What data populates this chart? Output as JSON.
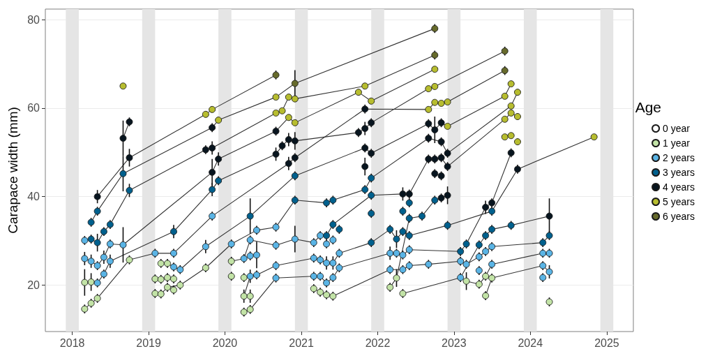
{
  "chart_data": {
    "type": "scatter",
    "ylabel": "Carapace width (mm)",
    "legend_title": "Age",
    "legend": "right",
    "grid": "y",
    "line_style": "solid",
    "xlim": [
      "2017-08-25",
      "2025-05-08"
    ],
    "xticks": [
      "2018",
      "2019",
      "2020",
      "2021",
      "2022",
      "2023",
      "2024",
      "2025"
    ],
    "ylim": [
      9.5,
      82.4
    ],
    "yticks": [
      20,
      40,
      60,
      80
    ],
    "bands": [
      {
        "axis": "x",
        "from": "2017-12",
        "to": "2018-02",
        "color": "#e5e5e5"
      },
      {
        "axis": "x",
        "from": "2018-12",
        "to": "2019-02",
        "color": "#e5e5e5"
      },
      {
        "axis": "x",
        "from": "2019-12",
        "to": "2020-02",
        "color": "#e5e5e5"
      },
      {
        "axis": "x",
        "from": "2020-12",
        "to": "2021-02",
        "color": "#e5e5e5"
      },
      {
        "axis": "x",
        "from": "2021-12",
        "to": "2022-02",
        "color": "#e5e5e5"
      },
      {
        "axis": "x",
        "from": "2022-12",
        "to": "2023-02",
        "color": "#e5e5e5"
      },
      {
        "axis": "x",
        "from": "2023-12",
        "to": "2024-02",
        "color": "#e5e5e5"
      },
      {
        "axis": "x",
        "from": "2024-12",
        "to": "2025-02",
        "color": "#e5e5e5"
      }
    ],
    "series": [
      {
        "type": "line",
        "color": "#333333",
        "x": [
          "2018-05",
          "2018-10",
          "2019-10",
          "2019-11",
          "2020-09"
        ],
        "values": [
          40.0,
          48.8,
          58.6,
          59.7,
          67.5
        ]
      },
      {
        "type": "line",
        "color": "#333333",
        "x": [
          "2018-04",
          "2018-05",
          "2018-09",
          "2019-11",
          "2019-12",
          "2020-09",
          "2020-12",
          "2022-10"
        ],
        "values": [
          34.2,
          36.7,
          45.2,
          55.6,
          57.3,
          62.5,
          65.6,
          78.0
        ]
      },
      {
        "type": "line",
        "color": "#333333",
        "x": [
          "2018-04",
          "2018-05",
          "2018-06",
          "2018-07",
          "2018-10",
          "2019-10",
          "2019-11",
          "2020-09",
          "2020-10",
          "2020-11",
          "2020-12",
          "2021-11",
          "2022-10"
        ],
        "values": [
          30.4,
          29.6,
          32.1,
          33.7,
          41.4,
          50.6,
          51.0,
          58.9,
          59.4,
          62.5,
          62.1,
          65.0,
          72.0
        ]
      },
      {
        "type": "line",
        "color": "#333333",
        "x": [
          "2018-09",
          "2018-10"
        ],
        "values": [
          53.2,
          56.9
        ]
      },
      {
        "type": "line",
        "color": "#333333",
        "x": [
          "2018-03",
          "2018-04",
          "2018-05",
          "2018-06",
          "2018-07",
          "2018-09",
          "2019-11",
          "2019-12",
          "2020-09",
          "2020-11",
          "2020-12",
          "2021-10",
          "2021-12",
          "2022-10"
        ],
        "values": [
          26.0,
          25.4,
          24.4,
          26.3,
          29.3,
          29.1,
          45.5,
          48.5,
          54.8,
          57.9,
          56.7,
          63.6,
          61.6,
          68.8
        ]
      },
      {
        "type": "line",
        "color": "#333333",
        "x": [
          "2018-03",
          "2018-04",
          "2018-05",
          "2018-06",
          "2018-07",
          "2019-05",
          "2019-11",
          "2019-12",
          "2020-09",
          "2020-10",
          "2020-11",
          "2020-12",
          "2021-10",
          "2021-11",
          "2021-12",
          "2022-09",
          "2022-10",
          "2023-09"
        ],
        "values": [
          20.6,
          20.7,
          20.5,
          22.5,
          25.4,
          32.1,
          41.6,
          43.6,
          49.6,
          51.5,
          52.9,
          52.6,
          54.5,
          55.4,
          56.7,
          64.4,
          64.9,
          72.9
        ]
      },
      {
        "type": "line",
        "color": "#333333",
        "x": [
          "2018-03",
          "2018-04",
          "2018-05",
          "2018-10",
          "2019-02",
          "2019-05",
          "2019-11",
          "2020-11",
          "2020-12",
          "2021-11",
          "2022-09",
          "2022-10",
          "2022-11",
          "2022-12",
          "2023-09"
        ],
        "values": [
          14.6,
          15.9,
          17.0,
          25.7,
          27.2,
          27.2,
          35.6,
          47.5,
          48.8,
          59.8,
          59.7,
          61.3,
          61.1,
          61.4,
          68.5
        ]
      },
      {
        "type": "line",
        "color": "#333333",
        "x": [
          "2019-03",
          "2019-04",
          "2019-05",
          "2019-06",
          "2019-10",
          "2020-05",
          "2020-12",
          "2021-11",
          "2021-12",
          "2022-09",
          "2022-10",
          "2022-11",
          "2022-12",
          "2023-09",
          "2023-10"
        ],
        "values": [
          24.9,
          24.9,
          24.1,
          23.5,
          28.7,
          35.6,
          44.7,
          51.0,
          49.8,
          56.5,
          55.1,
          56.7,
          55.9,
          62.7,
          65.5
        ]
      },
      {
        "type": "line",
        "color": "#333333",
        "x": [
          "2019-02",
          "2019-03",
          "2019-04",
          "2019-06",
          "2019-10",
          "2020-02",
          "2020-06",
          "2020-09",
          "2020-12",
          "2021-05",
          "2021-06",
          "2021-11",
          "2021-12",
          "2022-09",
          "2022-11",
          "2022-12",
          "2023-10",
          "2023-11"
        ],
        "values": [
          18.1,
          18.0,
          19.5,
          20.0,
          23.9,
          29.3,
          32.4,
          33.1,
          39.2,
          38.6,
          39.2,
          41.6,
          44.2,
          53.2,
          52.4,
          49.8,
          60.5,
          63.6
        ]
      },
      {
        "type": "line",
        "color": "#333333",
        "x": [
          "2020-02",
          "2020-04",
          "2020-05",
          "2020-09",
          "2020-12",
          "2021-03",
          "2021-04",
          "2021-05",
          "2021-06",
          "2021-12",
          "2022-05",
          "2022-06",
          "2022-09",
          "2022-10",
          "2022-11",
          "2022-12",
          "2023-09",
          "2023-10",
          "2023-11"
        ],
        "values": [
          25.4,
          26.0,
          30.2,
          29.0,
          30.4,
          29.6,
          31.2,
          31.2,
          33.7,
          40.3,
          40.6,
          40.6,
          48.5,
          48.5,
          48.8,
          46.8,
          57.5,
          58.9,
          58.1
        ]
      },
      {
        "type": "line",
        "color": "#333333",
        "x": [
          "2020-04",
          "2020-05",
          "2020-06",
          "2020-09",
          "2021-03",
          "2021-04",
          "2021-05",
          "2021-06",
          "2021-07",
          "2021-12",
          "2022-03",
          "2022-04",
          "2022-05",
          "2022-06",
          "2022-12",
          "2023-07",
          "2023-11",
          "2024-11"
        ],
        "values": [
          17.5,
          22.0,
          22.3,
          24.4,
          26.1,
          25.7,
          25.0,
          25.0,
          27.2,
          29.6,
          32.6,
          30.4,
          32.1,
          31.2,
          33.5,
          36.7,
          46.2,
          53.5
        ]
      },
      {
        "type": "line",
        "color": "#333333",
        "x": [
          "2020-04",
          "2020-05",
          "2020-09",
          "2021-03",
          "2021-04",
          "2021-05",
          "2021-06",
          "2021-07",
          "2022-03",
          "2022-04",
          "2022-05",
          "2022-06",
          "2023-02",
          "2023-03",
          "2023-06",
          "2023-07",
          "2023-10"
        ],
        "values": [
          13.9,
          14.5,
          21.6,
          22.0,
          22.0,
          20.5,
          21.7,
          23.9,
          27.2,
          27.2,
          26.8,
          28.0,
          27.6,
          29.3,
          37.6,
          38.6,
          49.9
        ]
      },
      {
        "type": "line",
        "color": "#333333",
        "x": [
          "2021-03",
          "2021-04",
          "2021-05",
          "2021-06",
          "2022-03",
          "2022-05",
          "2022-06",
          "2022-09",
          "2023-02",
          "2023-03",
          "2023-05",
          "2023-06",
          "2023-07",
          "2024-03",
          "2024-04"
        ],
        "values": [
          19.2,
          18.4,
          17.8,
          17.5,
          23.5,
          23.5,
          24.4,
          24.7,
          25.4,
          24.7,
          26.4,
          27.6,
          28.7,
          29.6,
          31.2
        ]
      },
      {
        "type": "line",
        "color": "#333333",
        "x": [
          "2022-05",
          "2023-02",
          "2023-05",
          "2023-06",
          "2023-07",
          "2023-10",
          "2024-04"
        ],
        "values": [
          18.1,
          21.7,
          29.1,
          31.2,
          32.6,
          33.5,
          35.6
        ]
      },
      {
        "type": "line",
        "color": "#333333",
        "x": [
          "2022-03",
          "2022-04",
          "2022-06",
          "2022-08",
          "2022-10",
          "2022-11",
          "2022-12"
        ],
        "values": [
          19.5,
          21.6,
          35.1,
          35.6,
          39.2,
          39.7,
          40.3
        ]
      },
      {
        "type": "line",
        "color": "#333333",
        "x": [
          "2023-03",
          "2023-05",
          "2023-06",
          "2023-07",
          "2024-03",
          "2024-04"
        ],
        "values": [
          20.9,
          20.2,
          22.0,
          24.7,
          27.2,
          27.2
        ]
      },
      {
        "type": "line",
        "color": "#333333",
        "x": [
          "2023-06",
          "2023-07",
          "2024-03",
          "2024-04"
        ],
        "values": [
          17.6,
          21.6,
          24.4,
          23.0
        ]
      },
      {
        "name": "0 year",
        "color": "#ffffff",
        "marker": "circle"
      },
      {
        "name": "1 year",
        "color": "#c2e3a6",
        "marker": "circle",
        "x": [
          "2018-03",
          "2018-04",
          "2018-05",
          "2018-03",
          "2018-04",
          "2018-10",
          "2019-02",
          "2019-03",
          "2019-04",
          "2019-05",
          "2019-02",
          "2019-03",
          "2019-04",
          "2019-05",
          "2019-06",
          "2019-03",
          "2019-04",
          "2019-10",
          "2020-02",
          "2020-02",
          "2020-04",
          "2020-04",
          "2020-05",
          "2020-04",
          "2020-05",
          "2021-03",
          "2021-04",
          "2021-05",
          "2021-06",
          "2022-03",
          "2022-04",
          "2022-05",
          "2023-03",
          "2023-05",
          "2023-06",
          "2023-07",
          "2023-06",
          "2024-04"
        ],
        "values": [
          14.6,
          15.9,
          17.0,
          20.6,
          20.7,
          25.7,
          21.4,
          21.3,
          21.7,
          21.4,
          18.1,
          18.0,
          19.5,
          18.9,
          20.0,
          24.9,
          24.9,
          23.9,
          25.4,
          22.0,
          21.7,
          17.5,
          17.5,
          13.9,
          14.5,
          19.2,
          18.4,
          17.8,
          17.5,
          19.5,
          21.6,
          18.1,
          20.9,
          20.2,
          22.0,
          21.6,
          17.6,
          16.2
        ],
        "errors": [
          1,
          1,
          1,
          3,
          2,
          1,
          1,
          1,
          1,
          1,
          1,
          1,
          1,
          1,
          1,
          1,
          1,
          1,
          1,
          1,
          1,
          1.5,
          1.5,
          1,
          1,
          1,
          1,
          1,
          1,
          1,
          2,
          1,
          2,
          1,
          1,
          1,
          1,
          1
        ]
      },
      {
        "name": "2 years",
        "color": "#5ab4e5",
        "marker": "circle",
        "x": [
          "2018-03",
          "2018-03",
          "2018-04",
          "2018-05",
          "2018-05",
          "2018-06",
          "2018-06",
          "2018-07",
          "2018-07",
          "2018-09",
          "2019-02",
          "2019-05",
          "2019-05",
          "2019-06",
          "2019-10",
          "2019-11",
          "2020-02",
          "2020-04",
          "2020-05",
          "2020-05",
          "2020-05",
          "2020-06",
          "2020-06",
          "2020-06",
          "2020-09",
          "2020-09",
          "2020-09",
          "2020-09",
          "2020-12",
          "2021-03",
          "2021-04",
          "2021-05",
          "2021-06",
          "2021-03",
          "2021-04",
          "2021-05",
          "2021-06",
          "2021-07",
          "2021-03",
          "2021-04",
          "2021-05",
          "2021-06",
          "2021-07",
          "2022-03",
          "2022-04",
          "2022-05",
          "2022-06",
          "2022-03",
          "2022-05",
          "2022-06",
          "2022-09",
          "2023-02",
          "2023-03",
          "2023-02",
          "2023-05",
          "2023-06",
          "2023-07",
          "2023-05",
          "2023-07",
          "2024-03",
          "2024-04",
          "2024-03",
          "2024-04",
          "2024-03"
        ],
        "values": [
          30.1,
          26.0,
          25.4,
          24.4,
          20.5,
          26.3,
          22.5,
          29.3,
          25.4,
          29.1,
          27.2,
          27.2,
          24.1,
          23.5,
          28.7,
          35.6,
          29.3,
          26.0,
          30.2,
          26.6,
          22.0,
          32.4,
          26.8,
          22.3,
          33.1,
          29.0,
          24.4,
          21.6,
          30.4,
          29.6,
          31.2,
          29.3,
          30.2,
          26.1,
          25.7,
          25.0,
          25.0,
          27.2,
          22.0,
          22.0,
          20.5,
          21.7,
          23.9,
          27.2,
          27.2,
          26.8,
          28.0,
          23.5,
          23.5,
          24.4,
          24.7,
          25.4,
          24.7,
          21.7,
          26.4,
          27.6,
          28.7,
          23.3,
          24.7,
          27.2,
          27.2,
          24.4,
          23.0,
          21.7
        ],
        "errors": [
          1,
          1.5,
          1.5,
          1,
          1,
          1.5,
          1,
          1,
          1.5,
          4,
          1,
          1,
          1,
          1,
          1.5,
          1,
          1,
          1,
          1,
          1,
          1.5,
          1,
          3,
          1,
          1,
          1,
          1,
          1,
          3,
          1,
          1,
          1,
          1,
          1,
          1,
          1.5,
          1.5,
          1,
          1,
          1,
          1,
          1,
          1,
          1.5,
          1,
          1,
          1,
          1,
          1,
          1,
          1,
          1,
          1,
          1,
          1,
          1,
          1,
          1,
          1,
          1,
          1,
          1,
          1.5,
          1
        ]
      },
      {
        "name": "3 years",
        "color": "#00608d",
        "marker": "circle",
        "x": [
          "2018-04",
          "2018-04",
          "2018-05",
          "2018-05",
          "2018-06",
          "2018-07",
          "2018-09",
          "2018-10",
          "2019-05",
          "2019-11",
          "2019-12",
          "2020-05",
          "2020-12",
          "2020-12",
          "2021-05",
          "2021-06",
          "2021-05",
          "2021-06",
          "2021-07",
          "2021-11",
          "2021-12",
          "2021-12",
          "2021-12",
          "2021-12",
          "2022-03",
          "2022-04",
          "2022-05",
          "2022-05",
          "2022-06",
          "2022-06",
          "2022-06",
          "2022-08",
          "2022-10",
          "2022-12",
          "2023-02",
          "2023-03",
          "2023-05",
          "2023-06",
          "2023-07",
          "2023-07",
          "2023-10",
          "2024-03",
          "2024-04"
        ],
        "values": [
          34.2,
          30.4,
          36.7,
          29.6,
          32.1,
          33.7,
          45.2,
          41.4,
          32.1,
          41.6,
          43.6,
          35.6,
          44.7,
          39.2,
          38.6,
          39.2,
          31.2,
          33.7,
          32.6,
          41.6,
          44.2,
          40.3,
          36.2,
          29.6,
          32.6,
          30.4,
          36.7,
          32.1,
          38.6,
          35.1,
          31.2,
          35.6,
          39.2,
          33.5,
          27.6,
          29.3,
          29.1,
          31.2,
          32.6,
          36.7,
          33.5,
          29.6,
          31.2
        ],
        "errors": [
          1,
          1,
          1,
          2,
          1,
          1,
          4,
          1.5,
          1.5,
          1.5,
          1,
          4,
          1,
          1,
          1,
          1,
          1,
          1,
          1,
          1,
          1,
          1,
          1,
          1,
          1,
          2,
          1,
          1,
          1,
          1,
          1,
          1,
          1,
          1,
          1,
          1,
          1,
          1,
          1,
          1,
          1,
          1,
          1
        ]
      },
      {
        "name": "4 years",
        "color": "#08151f",
        "marker": "circle",
        "x": [
          "2018-05",
          "2018-09",
          "2018-10",
          "2018-10",
          "2019-10",
          "2019-11",
          "2019-12",
          "2019-11",
          "2019-11",
          "2020-09",
          "2020-09",
          "2020-10",
          "2020-11",
          "2020-12",
          "2020-11",
          "2020-12",
          "2021-10",
          "2021-11",
          "2021-12",
          "2021-11",
          "2021-11",
          "2021-12",
          "2021-11",
          "2022-05",
          "2022-06",
          "2022-09",
          "2022-10",
          "2022-11",
          "2022-09",
          "2022-11",
          "2022-12",
          "2022-09",
          "2022-10",
          "2022-11",
          "2022-10",
          "2022-11",
          "2022-12",
          "2022-12",
          "2022-11",
          "2023-06",
          "2023-07",
          "2023-10",
          "2023-11",
          "2024-04"
        ],
        "values": [
          40.0,
          53.2,
          56.9,
          48.8,
          50.6,
          51.0,
          48.5,
          45.5,
          55.6,
          54.8,
          49.6,
          51.5,
          52.9,
          52.6,
          47.5,
          48.8,
          54.5,
          55.4,
          56.7,
          59.8,
          51.0,
          49.8,
          46.8,
          40.6,
          40.6,
          56.5,
          55.1,
          56.7,
          53.2,
          52.4,
          49.8,
          48.5,
          48.5,
          48.8,
          45.2,
          44.7,
          46.8,
          40.3,
          39.7,
          37.6,
          38.6,
          49.9,
          46.2,
          35.6
        ],
        "errors": [
          1.5,
          4,
          1,
          2,
          1,
          1.5,
          1.5,
          3,
          1,
          1,
          1.5,
          1,
          1.5,
          2,
          1.5,
          1,
          1,
          1.5,
          1,
          1,
          1,
          1,
          2,
          1.5,
          1,
          1,
          3,
          1,
          1,
          1,
          1,
          1,
          1,
          1,
          1,
          1,
          1,
          2,
          1,
          1.5,
          1,
          1,
          1,
          4
        ]
      },
      {
        "name": "5 years",
        "color": "#b7bd2f",
        "marker": "circle",
        "x": [
          "2018-09",
          "2019-10",
          "2019-11",
          "2019-12",
          "2020-09",
          "2020-09",
          "2020-10",
          "2020-11",
          "2020-12",
          "2020-11",
          "2020-12",
          "2021-10",
          "2021-11",
          "2021-12",
          "2022-10",
          "2022-09",
          "2022-10",
          "2022-09",
          "2022-10",
          "2022-11",
          "2022-12",
          "2022-12",
          "2023-10",
          "2023-09",
          "2023-11",
          "2023-10",
          "2023-09",
          "2023-10",
          "2023-11",
          "2023-09",
          "2023-10",
          "2023-11",
          "2024-11"
        ],
        "values": [
          65.0,
          58.6,
          59.7,
          57.3,
          62.5,
          58.9,
          59.4,
          62.5,
          62.1,
          57.9,
          56.7,
          63.6,
          65.0,
          61.6,
          68.8,
          64.4,
          64.9,
          59.7,
          61.3,
          61.1,
          61.4,
          55.9,
          65.5,
          62.7,
          63.6,
          60.5,
          57.5,
          58.9,
          58.1,
          53.5,
          53.8,
          52.4,
          53.5
        ]
      },
      {
        "name": "6 years",
        "color": "#666a2b",
        "marker": "circle",
        "x": [
          "2020-09",
          "2020-12",
          "2022-10",
          "2022-10",
          "2023-09",
          "2023-09"
        ],
        "values": [
          67.5,
          65.6,
          78.0,
          72.0,
          72.9,
          68.5
        ],
        "errors": [
          1,
          3,
          1,
          1,
          1,
          1
        ]
      }
    ]
  }
}
